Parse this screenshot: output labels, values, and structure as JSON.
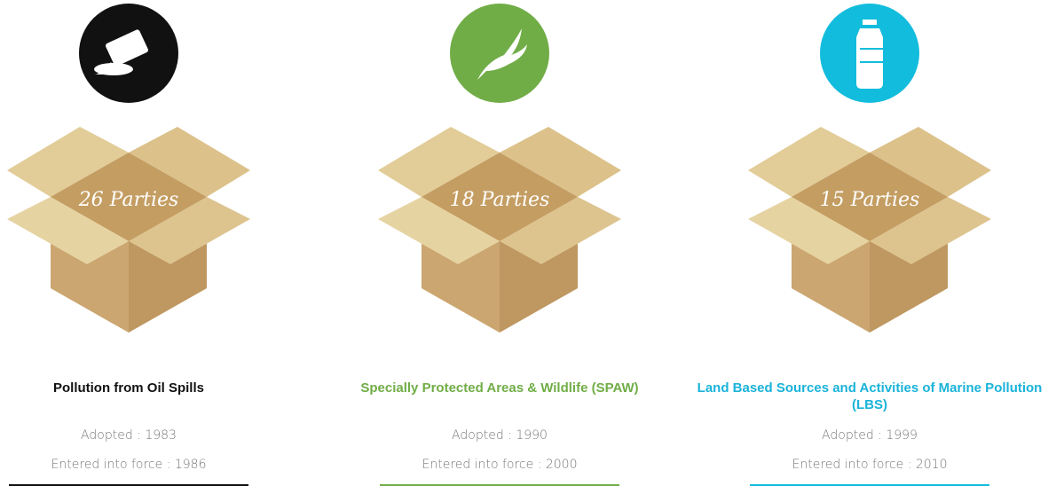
{
  "cards": [
    {
      "parties": "26 Parties",
      "title": "Pollution from Oil Spills",
      "adopted": "Adopted : 1983",
      "entered": "Entered into force : 1986",
      "color": "#111111",
      "title_color": "#111111"
    },
    {
      "parties": "18 Parties",
      "title": "Specially Protected Areas & Wildlife (SPAW)",
      "adopted": "Adopted : 1990",
      "entered": "Entered into force : 2000",
      "color": "#71ad47",
      "title_color": "#71ad47"
    },
    {
      "parties": "15 Parties",
      "title": "Land Based Sources and Activities of  Marine Pollution (LBS)",
      "adopted": "Adopted : 1999",
      "entered": "Entered into force : 2010",
      "color": "#12bcdc",
      "title_color": "#1ab3d9"
    }
  ]
}
